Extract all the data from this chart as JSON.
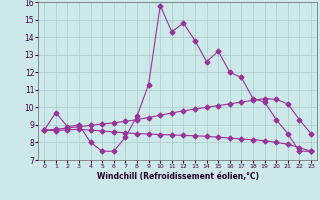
{
  "xlabel": "Windchill (Refroidissement éolien,°C)",
  "background_color": "#cce8e8",
  "grid_color": "#aacccc",
  "line_color": "#993399",
  "xlim_min": -0.5,
  "xlim_max": 23.5,
  "ylim_min": 7,
  "ylim_max": 16,
  "line1_x": [
    0,
    1,
    2,
    3,
    4,
    5,
    6,
    7,
    8,
    9,
    10,
    11,
    12,
    13,
    14,
    15,
    16,
    17,
    18,
    19,
    20,
    21,
    22,
    23
  ],
  "line1_y": [
    8.7,
    9.7,
    8.9,
    9.0,
    8.0,
    7.5,
    7.5,
    8.3,
    9.5,
    11.3,
    15.8,
    14.3,
    14.8,
    13.8,
    12.6,
    13.2,
    12.0,
    11.7,
    10.5,
    10.3,
    9.3,
    8.5,
    7.5,
    7.5
  ],
  "line2_x": [
    0,
    1,
    2,
    3,
    4,
    5,
    6,
    7,
    8,
    9,
    10,
    11,
    12,
    13,
    14,
    15,
    16,
    17,
    18,
    19,
    20,
    21,
    22,
    23
  ],
  "line2_y": [
    8.7,
    8.75,
    8.82,
    8.9,
    8.97,
    9.05,
    9.12,
    9.2,
    9.3,
    9.42,
    9.55,
    9.68,
    9.8,
    9.9,
    10.0,
    10.1,
    10.2,
    10.3,
    10.4,
    10.5,
    10.45,
    10.2,
    9.3,
    8.5
  ],
  "line3_x": [
    0,
    1,
    2,
    3,
    4,
    5,
    6,
    7,
    8,
    9,
    10,
    11,
    12,
    13,
    14,
    15,
    16,
    17,
    18,
    19,
    20,
    21,
    22,
    23
  ],
  "line3_y": [
    8.7,
    8.68,
    8.72,
    8.75,
    8.7,
    8.65,
    8.6,
    8.55,
    8.5,
    8.48,
    8.45,
    8.43,
    8.4,
    8.38,
    8.35,
    8.3,
    8.25,
    8.2,
    8.15,
    8.1,
    8.0,
    7.9,
    7.7,
    7.5
  ]
}
